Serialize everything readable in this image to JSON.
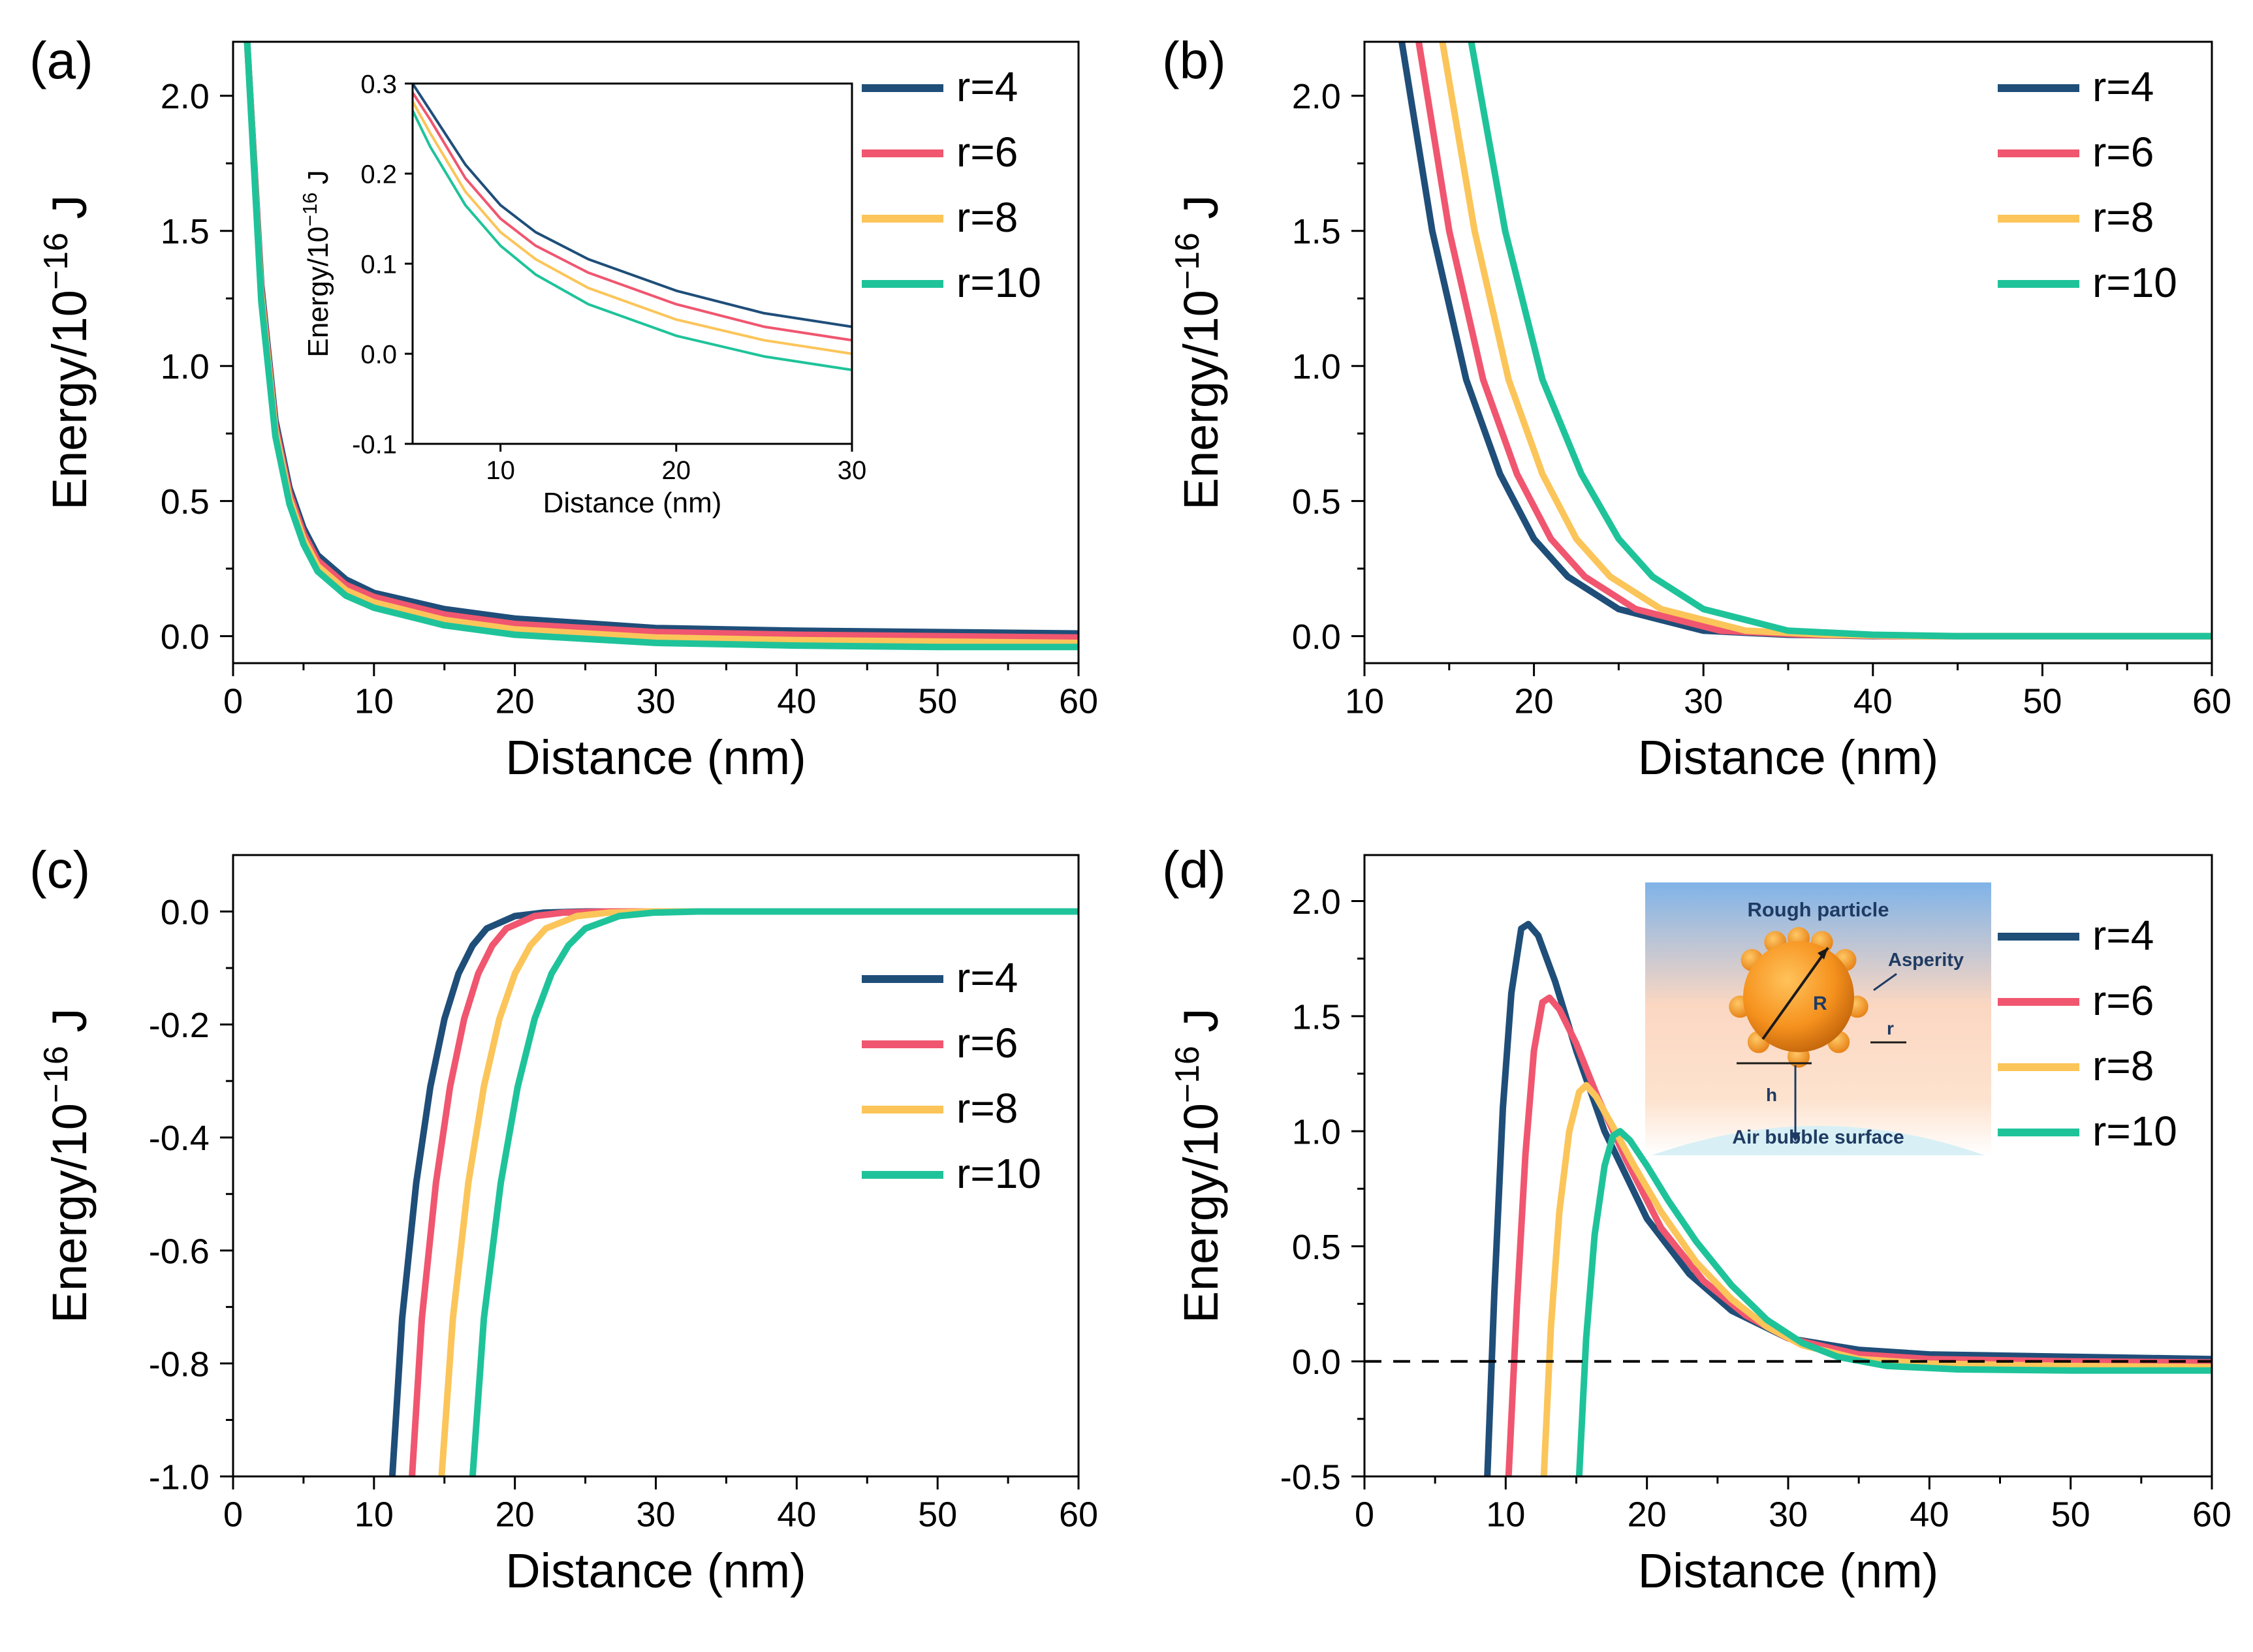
{
  "series_colors": {
    "r=4": "#1f4e79",
    "r=6": "#f0566f",
    "r=8": "#fbc55a",
    "r=10": "#1fc39a"
  },
  "chart_data": [
    {
      "id": "a",
      "type": "line",
      "panel_label": "(a)",
      "xlabel": "Distance (nm)",
      "ylabel": "Energy/10^−16 J",
      "xlim": [
        0,
        60
      ],
      "ylim": [
        -0.1,
        2.2
      ],
      "xticks": [
        "0",
        "10",
        "20",
        "30",
        "40",
        "50",
        "60"
      ],
      "xtick_values": [
        0,
        10,
        20,
        30,
        40,
        50,
        60
      ],
      "yticks": [
        "0.0",
        "0.5",
        "1.0",
        "1.5",
        "2.0"
      ],
      "ytick_values": [
        0,
        0.5,
        1.0,
        1.5,
        2.0
      ],
      "legend": [
        "r=4",
        "r=6",
        "r=8",
        "r=10"
      ],
      "series": [
        {
          "name": "r=4",
          "x": [
            1,
            2,
            3,
            4,
            5,
            6,
            8,
            10,
            15,
            20,
            30,
            40,
            50,
            60
          ],
          "y": [
            2.2,
            1.3,
            0.8,
            0.55,
            0.4,
            0.3,
            0.21,
            0.16,
            0.1,
            0.065,
            0.03,
            0.02,
            0.015,
            0.01
          ]
        },
        {
          "name": "r=6",
          "x": [
            1,
            2,
            3,
            4,
            5,
            6,
            8,
            10,
            15,
            20,
            30,
            40,
            50,
            60
          ],
          "y": [
            2.2,
            1.28,
            0.78,
            0.53,
            0.38,
            0.28,
            0.19,
            0.145,
            0.08,
            0.045,
            0.015,
            0.005,
            0.0,
            -0.005
          ]
        },
        {
          "name": "r=8",
          "x": [
            1,
            2,
            3,
            4,
            5,
            6,
            8,
            10,
            15,
            20,
            30,
            40,
            50,
            60
          ],
          "y": [
            2.2,
            1.26,
            0.76,
            0.51,
            0.36,
            0.26,
            0.17,
            0.125,
            0.06,
            0.025,
            -0.005,
            -0.015,
            -0.02,
            -0.025
          ]
        },
        {
          "name": "r=10",
          "x": [
            1,
            2,
            3,
            4,
            5,
            6,
            8,
            10,
            15,
            20,
            30,
            40,
            50,
            60
          ],
          "y": [
            2.2,
            1.24,
            0.74,
            0.49,
            0.34,
            0.24,
            0.15,
            0.105,
            0.04,
            0.005,
            -0.025,
            -0.035,
            -0.04,
            -0.04
          ]
        }
      ],
      "inset": {
        "xlabel": "Distance (nm)",
        "ylabel": "Energy/10^−16 J",
        "xlim": [
          5,
          30
        ],
        "ylim": [
          -0.1,
          0.3
        ],
        "xticks": [
          "10",
          "20",
          "30"
        ],
        "xtick_values": [
          10,
          20,
          30
        ],
        "yticks": [
          "-0.1",
          "0.0",
          "0.1",
          "0.2",
          "0.3"
        ],
        "ytick_values": [
          -0.1,
          0.0,
          0.1,
          0.2,
          0.3
        ],
        "series": [
          {
            "name": "r=4",
            "x": [
              5,
              6,
              8,
              10,
              12,
              15,
              20,
              25,
              30
            ],
            "y": [
              0.3,
              0.27,
              0.21,
              0.165,
              0.135,
              0.105,
              0.07,
              0.045,
              0.03
            ]
          },
          {
            "name": "r=6",
            "x": [
              5,
              6,
              8,
              10,
              12,
              15,
              20,
              25,
              30
            ],
            "y": [
              0.29,
              0.26,
              0.195,
              0.15,
              0.12,
              0.09,
              0.055,
              0.03,
              0.015
            ]
          },
          {
            "name": "r=8",
            "x": [
              5,
              6,
              8,
              10,
              12,
              15,
              20,
              25,
              30
            ],
            "y": [
              0.28,
              0.245,
              0.18,
              0.135,
              0.105,
              0.073,
              0.038,
              0.015,
              0.0
            ]
          },
          {
            "name": "r=10",
            "x": [
              5,
              6,
              8,
              10,
              12,
              15,
              20,
              25,
              30
            ],
            "y": [
              0.27,
              0.23,
              0.165,
              0.12,
              0.088,
              0.055,
              0.02,
              -0.003,
              -0.018
            ]
          }
        ]
      }
    },
    {
      "id": "b",
      "type": "line",
      "panel_label": "(b)",
      "xlabel": "Distance (nm)",
      "ylabel": "Energy/10^−16 J",
      "xlim": [
        10,
        60
      ],
      "ylim": [
        -0.1,
        2.2
      ],
      "xticks": [
        "10",
        "20",
        "30",
        "40",
        "50",
        "60"
      ],
      "xtick_values": [
        10,
        20,
        30,
        40,
        50,
        60
      ],
      "yticks": [
        "0.0",
        "0.5",
        "1.0",
        "1.5",
        "2.0"
      ],
      "ytick_values": [
        0,
        0.5,
        1.0,
        1.5,
        2.0
      ],
      "legend": [
        "r=4",
        "r=6",
        "r=8",
        "r=10"
      ],
      "series": [
        {
          "name": "r=4",
          "x": [
            12.2,
            14,
            16,
            18,
            20,
            22,
            25,
            30,
            35,
            40,
            50,
            60
          ],
          "y": [
            2.2,
            1.5,
            0.95,
            0.6,
            0.36,
            0.22,
            0.1,
            0.02,
            0.005,
            0.0,
            0.0,
            0.0
          ]
        },
        {
          "name": "r=6",
          "x": [
            13.2,
            15,
            17,
            19,
            21,
            23,
            26,
            31,
            36,
            41,
            50,
            60
          ],
          "y": [
            2.2,
            1.5,
            0.95,
            0.6,
            0.36,
            0.22,
            0.1,
            0.02,
            0.005,
            0.0,
            0.0,
            0.0
          ]
        },
        {
          "name": "r=8",
          "x": [
            14.6,
            16.5,
            18.5,
            20.5,
            22.5,
            24.5,
            27.5,
            32.5,
            37.5,
            42.5,
            50,
            60
          ],
          "y": [
            2.2,
            1.5,
            0.95,
            0.6,
            0.36,
            0.22,
            0.1,
            0.02,
            0.005,
            0.0,
            0.0,
            0.0
          ]
        },
        {
          "name": "r=10",
          "x": [
            16.3,
            18.3,
            20.5,
            22.8,
            25,
            27,
            30,
            35,
            40,
            45,
            50,
            60
          ],
          "y": [
            2.2,
            1.5,
            0.95,
            0.6,
            0.36,
            0.22,
            0.1,
            0.02,
            0.005,
            0.0,
            0.0,
            0.0
          ]
        }
      ]
    },
    {
      "id": "c",
      "type": "line",
      "panel_label": "(c)",
      "xlabel": "Distance (nm)",
      "ylabel": "Energy/10^−16 J",
      "xlim": [
        0,
        60
      ],
      "ylim": [
        -1.0,
        0.1
      ],
      "xticks": [
        "0",
        "10",
        "20",
        "30",
        "40",
        "50",
        "60"
      ],
      "xtick_values": [
        0,
        10,
        20,
        30,
        40,
        50,
        60
      ],
      "yticks": [
        "0.0",
        "-0.2",
        "-0.4",
        "-0.6",
        "-0.8",
        "-1.0"
      ],
      "ytick_values": [
        0,
        -0.2,
        -0.4,
        -0.6,
        -0.8,
        -1.0
      ],
      "legend": [
        "r=4",
        "r=6",
        "r=8",
        "r=10"
      ],
      "series": [
        {
          "name": "r=4",
          "x": [
            11.3,
            12,
            13,
            14,
            15,
            16,
            17,
            18,
            20,
            22,
            25,
            60
          ],
          "y": [
            -1.0,
            -0.72,
            -0.48,
            -0.31,
            -0.19,
            -0.11,
            -0.06,
            -0.03,
            -0.008,
            -0.002,
            0.0,
            0.0
          ]
        },
        {
          "name": "r=6",
          "x": [
            12.7,
            13.4,
            14.4,
            15.4,
            16.4,
            17.4,
            18.4,
            19.4,
            21.4,
            23.4,
            26.4,
            60
          ],
          "y": [
            -1.0,
            -0.72,
            -0.48,
            -0.31,
            -0.19,
            -0.11,
            -0.06,
            -0.03,
            -0.008,
            -0.002,
            0.0,
            0.0
          ]
        },
        {
          "name": "r=8",
          "x": [
            14.8,
            15.6,
            16.7,
            17.8,
            18.9,
            20,
            21.1,
            22.2,
            24.4,
            26.6,
            29.5,
            60
          ],
          "y": [
            -1.0,
            -0.72,
            -0.48,
            -0.31,
            -0.19,
            -0.11,
            -0.06,
            -0.03,
            -0.008,
            -0.002,
            0.0,
            0.0
          ]
        },
        {
          "name": "r=10",
          "x": [
            17,
            17.8,
            19,
            20.2,
            21.4,
            22.6,
            23.8,
            25,
            27.4,
            29.8,
            33,
            60
          ],
          "y": [
            -1.0,
            -0.72,
            -0.48,
            -0.31,
            -0.19,
            -0.11,
            -0.06,
            -0.03,
            -0.008,
            -0.002,
            0.0,
            0.0
          ]
        }
      ]
    },
    {
      "id": "d",
      "type": "line",
      "panel_label": "(d)",
      "xlabel": "Distance (nm)",
      "ylabel": "Energy/10^−16 J",
      "xlim": [
        0,
        60
      ],
      "ylim": [
        -0.5,
        2.2
      ],
      "xticks": [
        "0",
        "10",
        "20",
        "30",
        "40",
        "50",
        "60"
      ],
      "xtick_values": [
        0,
        10,
        20,
        30,
        40,
        50,
        60
      ],
      "yticks": [
        "-0.5",
        "0.0",
        "0.5",
        "1.0",
        "1.5",
        "2.0"
      ],
      "ytick_values": [
        -0.5,
        0,
        0.5,
        1.0,
        1.5,
        2.0
      ],
      "legend": [
        "r=4",
        "r=6",
        "r=8",
        "r=10"
      ],
      "reference_line": 0.0,
      "series": [
        {
          "name": "r=4",
          "x": [
            8.7,
            9.2,
            9.8,
            10.4,
            11.1,
            11.6,
            12.3,
            13.5,
            15,
            17,
            20,
            23,
            26,
            30,
            35,
            40,
            50,
            60
          ],
          "y": [
            -0.5,
            0.3,
            1.1,
            1.6,
            1.88,
            1.9,
            1.85,
            1.65,
            1.35,
            1.0,
            0.62,
            0.38,
            0.22,
            0.1,
            0.05,
            0.03,
            0.02,
            0.01
          ]
        },
        {
          "name": "r=6",
          "x": [
            10.2,
            10.8,
            11.4,
            12.0,
            12.6,
            13.1,
            13.8,
            15,
            16.5,
            18.5,
            21,
            24,
            27,
            30,
            35,
            40,
            50,
            60
          ],
          "y": [
            -0.5,
            0.25,
            0.9,
            1.35,
            1.56,
            1.58,
            1.53,
            1.38,
            1.15,
            0.88,
            0.58,
            0.35,
            0.2,
            0.1,
            0.03,
            0.01,
            0.0,
            -0.005
          ]
        },
        {
          "name": "r=8",
          "x": [
            12.7,
            13.2,
            13.8,
            14.5,
            15.2,
            15.7,
            16.4,
            17.5,
            19,
            21,
            23.5,
            26,
            28.5,
            31,
            35,
            40,
            50,
            60
          ],
          "y": [
            -0.5,
            0.15,
            0.65,
            1.0,
            1.17,
            1.2,
            1.15,
            1.03,
            0.86,
            0.65,
            0.43,
            0.27,
            0.15,
            0.07,
            0.01,
            -0.01,
            -0.02,
            -0.025
          ]
        },
        {
          "name": "r=10",
          "x": [
            15.2,
            15.7,
            16.3,
            17.0,
            17.6,
            18.1,
            18.8,
            20,
            21.5,
            23.5,
            26,
            28.5,
            31,
            33.5,
            37,
            42,
            50,
            60
          ],
          "y": [
            -0.5,
            0.1,
            0.55,
            0.85,
            0.98,
            1.0,
            0.96,
            0.85,
            0.7,
            0.52,
            0.33,
            0.18,
            0.08,
            0.02,
            -0.02,
            -0.035,
            -0.04,
            -0.04
          ]
        }
      ],
      "inset_diagram": {
        "title": "Rough particle",
        "asperity_label": "Asperity",
        "big_radius_label": "R",
        "small_radius_label": "r",
        "gap_label": "h",
        "surface_label": "Air bubble surface"
      }
    }
  ]
}
